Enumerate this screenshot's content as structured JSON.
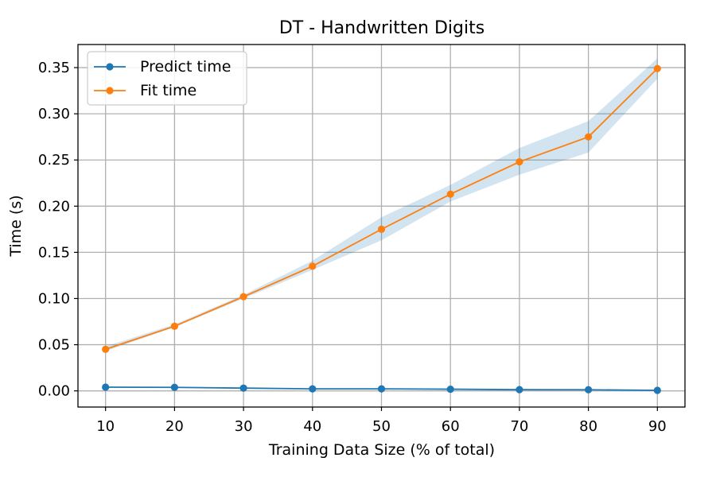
{
  "chart_data": {
    "type": "line",
    "title": "DT - Handwritten Digits",
    "xlabel": "Training Data Size (% of total)",
    "ylabel": "Time (s)",
    "x": [
      10,
      20,
      30,
      40,
      50,
      60,
      70,
      80,
      90
    ],
    "xlim": [
      6,
      94
    ],
    "ylim": [
      -0.0175,
      0.375
    ],
    "xticks": [
      "10",
      "20",
      "30",
      "40",
      "50",
      "60",
      "70",
      "80",
      "90"
    ],
    "yticks": [
      "0.00",
      "0.05",
      "0.10",
      "0.15",
      "0.20",
      "0.25",
      "0.30",
      "0.35"
    ],
    "ytick_values": [
      0,
      0.05,
      0.1,
      0.15,
      0.2,
      0.25,
      0.3,
      0.35
    ],
    "grid": true,
    "legend_position": "top-left",
    "series": [
      {
        "name": "Predict time",
        "color": "#1f77b4",
        "values": [
          0.004,
          0.0038,
          0.003,
          0.0022,
          0.0022,
          0.0018,
          0.0013,
          0.0012,
          0.0006
        ]
      },
      {
        "name": "Fit time",
        "color": "#ff7f0e",
        "values": [
          0.045,
          0.07,
          0.102,
          0.135,
          0.175,
          0.213,
          0.248,
          0.275,
          0.349
        ],
        "band_color": "#1f77b4",
        "band_lower": [
          0.043,
          0.069,
          0.1,
          0.131,
          0.163,
          0.205,
          0.234,
          0.258,
          0.338
        ],
        "band_upper": [
          0.048,
          0.072,
          0.104,
          0.141,
          0.188,
          0.223,
          0.263,
          0.292,
          0.36
        ]
      }
    ]
  }
}
